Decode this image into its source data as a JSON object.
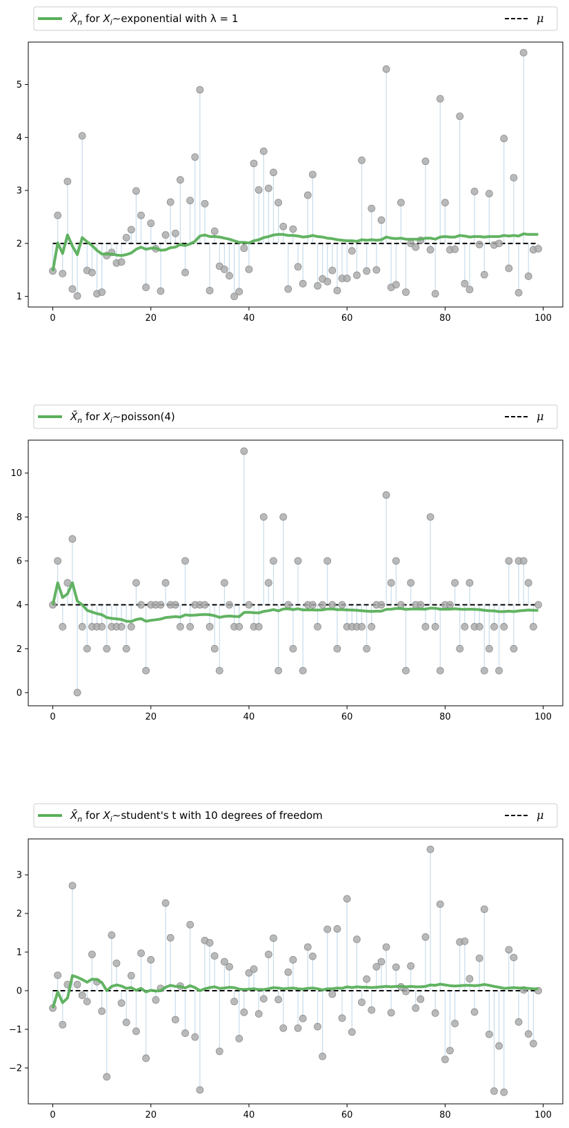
{
  "style": {
    "mean_line_color": "#5aaf5a",
    "sample_color": "#a9a9a9",
    "stem_color": "#c6dcec",
    "mu_color": "#000000",
    "background": "#ffffff"
  },
  "legend": {
    "mu_label": "μ"
  },
  "chart_data": [
    {
      "type": "scatter",
      "legend_pre": "X̄",
      "legend_pre_sub": "n",
      "legend_mid": "for",
      "legend_var": "X",
      "legend_var_sub": "i",
      "legend_text": "∼exponential with λ = 1",
      "mu": 2,
      "xlim": [
        -5,
        104
      ],
      "ylim": [
        0.8,
        5.8
      ],
      "xticks": [
        0,
        20,
        40,
        60,
        80,
        100
      ],
      "yticks": [
        1,
        2,
        3,
        4,
        5
      ],
      "grid": false,
      "legend_position": "top",
      "x": [
        0,
        1,
        2,
        3,
        4,
        5,
        6,
        7,
        8,
        9,
        10,
        11,
        12,
        13,
        14,
        15,
        16,
        17,
        18,
        19,
        20,
        21,
        22,
        23,
        24,
        25,
        26,
        27,
        28,
        29,
        30,
        31,
        32,
        33,
        34,
        35,
        36,
        37,
        38,
        39,
        40,
        41,
        42,
        43,
        44,
        45,
        46,
        47,
        48,
        49,
        50,
        51,
        52,
        53,
        54,
        55,
        56,
        57,
        58,
        59,
        60,
        61,
        62,
        63,
        64,
        65,
        66,
        67,
        68,
        69,
        70,
        71,
        72,
        73,
        74,
        75,
        76,
        77,
        78,
        79,
        80,
        81,
        82,
        83,
        84,
        85,
        86,
        87,
        88,
        89,
        90,
        91,
        92,
        93,
        94,
        95,
        96,
        97,
        98,
        99
      ],
      "samples": [
        1.48,
        2.53,
        1.43,
        3.17,
        1.14,
        1.01,
        4.03,
        1.49,
        1.45,
        1.05,
        1.08,
        1.77,
        1.83,
        1.63,
        1.65,
        2.11,
        2.26,
        2.99,
        2.53,
        1.17,
        2.38,
        1.9,
        1.1,
        2.16,
        2.78,
        2.19,
        3.2,
        1.45,
        2.81,
        3.63,
        4.9,
        2.75,
        1.11,
        2.23,
        1.57,
        1.51,
        1.39,
        1.0,
        1.09,
        1.91,
        1.51,
        3.51,
        3.01,
        3.74,
        3.04,
        3.34,
        2.77,
        2.32,
        1.14,
        2.27,
        1.56,
        1.24,
        2.91,
        3.3,
        1.2,
        1.33,
        1.28,
        1.49,
        1.11,
        1.34,
        1.34,
        1.86,
        1.4,
        3.57,
        1.48,
        2.66,
        1.5,
        2.44,
        5.29,
        1.17,
        1.22,
        2.77,
        1.08,
        2.0,
        1.93,
        2.06,
        3.55,
        1.88,
        1.05,
        4.73,
        2.77,
        1.88,
        1.89,
        4.4,
        1.24,
        1.13,
        2.98,
        1.98,
        1.41,
        2.94,
        1.97,
        2.0,
        3.98,
        1.53,
        3.24,
        1.07,
        5.6,
        1.38,
        1.88,
        1.9
      ],
      "running_mean": [
        1.48,
        2.01,
        1.81,
        2.16,
        1.95,
        1.79,
        2.11,
        2.03,
        1.96,
        1.87,
        1.8,
        1.8,
        1.8,
        1.78,
        1.77,
        1.79,
        1.82,
        1.89,
        1.93,
        1.89,
        1.91,
        1.91,
        1.87,
        1.88,
        1.92,
        1.93,
        1.98,
        1.96,
        1.99,
        2.04,
        2.14,
        2.16,
        2.13,
        2.13,
        2.12,
        2.1,
        2.08,
        2.05,
        2.02,
        2.02,
        2.01,
        2.05,
        2.07,
        2.11,
        2.13,
        2.16,
        2.17,
        2.17,
        2.15,
        2.15,
        2.14,
        2.12,
        2.13,
        2.15,
        2.13,
        2.12,
        2.1,
        2.09,
        2.07,
        2.06,
        2.05,
        2.05,
        2.04,
        2.07,
        2.06,
        2.07,
        2.06,
        2.07,
        2.12,
        2.1,
        2.09,
        2.1,
        2.08,
        2.08,
        2.08,
        2.08,
        2.1,
        2.1,
        2.08,
        2.12,
        2.13,
        2.12,
        2.12,
        2.15,
        2.14,
        2.12,
        2.13,
        2.13,
        2.12,
        2.13,
        2.13,
        2.13,
        2.15,
        2.14,
        2.15,
        2.14,
        2.18,
        2.17,
        2.17,
        2.17
      ]
    },
    {
      "type": "scatter",
      "legend_pre": "X̄",
      "legend_pre_sub": "n",
      "legend_mid": "for",
      "legend_var": "X",
      "legend_var_sub": "i",
      "legend_text": "∼poisson(4)",
      "mu": 4,
      "xlim": [
        -5,
        104
      ],
      "ylim": [
        -0.6,
        11.5
      ],
      "xticks": [
        0,
        20,
        40,
        60,
        80,
        100
      ],
      "yticks": [
        0,
        2,
        4,
        6,
        8,
        10
      ],
      "grid": false,
      "legend_position": "top",
      "x": [
        0,
        1,
        2,
        3,
        4,
        5,
        6,
        7,
        8,
        9,
        10,
        11,
        12,
        13,
        14,
        15,
        16,
        17,
        18,
        19,
        20,
        21,
        22,
        23,
        24,
        25,
        26,
        27,
        28,
        29,
        30,
        31,
        32,
        33,
        34,
        35,
        36,
        37,
        38,
        39,
        40,
        41,
        42,
        43,
        44,
        45,
        46,
        47,
        48,
        49,
        50,
        51,
        52,
        53,
        54,
        55,
        56,
        57,
        58,
        59,
        60,
        61,
        62,
        63,
        64,
        65,
        66,
        67,
        68,
        69,
        70,
        71,
        72,
        73,
        74,
        75,
        76,
        77,
        78,
        79,
        80,
        81,
        82,
        83,
        84,
        85,
        86,
        87,
        88,
        89,
        90,
        91,
        92,
        93,
        94,
        95,
        96,
        97,
        98,
        99
      ],
      "samples": [
        4,
        6,
        3,
        5,
        7,
        0,
        3,
        2,
        3,
        3,
        3,
        2,
        3,
        3,
        3,
        2,
        3,
        5,
        4,
        1,
        4,
        4,
        4,
        5,
        4,
        4,
        3,
        6,
        3,
        4,
        4,
        4,
        3,
        2,
        1,
        5,
        4,
        3,
        3,
        11,
        4,
        3,
        3,
        8,
        5,
        6,
        1,
        8,
        4,
        2,
        6,
        1,
        4,
        4,
        3,
        4,
        6,
        4,
        2,
        4,
        3,
        3,
        3,
        3,
        2,
        3,
        4,
        4,
        9,
        5,
        6,
        4,
        1,
        5,
        4,
        4,
        3,
        8,
        3,
        1,
        4,
        4,
        5,
        2,
        3,
        5,
        3,
        3,
        1,
        2,
        3,
        1,
        3,
        6,
        2,
        6,
        6,
        5,
        3,
        4
      ],
      "running_mean": [
        4.0,
        5.0,
        4.33,
        4.5,
        5.0,
        4.17,
        4.0,
        3.75,
        3.67,
        3.6,
        3.55,
        3.42,
        3.38,
        3.36,
        3.33,
        3.25,
        3.24,
        3.33,
        3.37,
        3.25,
        3.29,
        3.32,
        3.35,
        3.42,
        3.44,
        3.46,
        3.44,
        3.54,
        3.52,
        3.53,
        3.55,
        3.56,
        3.55,
        3.5,
        3.43,
        3.47,
        3.49,
        3.47,
        3.46,
        3.65,
        3.66,
        3.64,
        3.63,
        3.7,
        3.73,
        3.78,
        3.72,
        3.81,
        3.82,
        3.78,
        3.82,
        3.77,
        3.77,
        3.77,
        3.76,
        3.77,
        3.81,
        3.81,
        3.78,
        3.78,
        3.77,
        3.76,
        3.75,
        3.73,
        3.71,
        3.7,
        3.71,
        3.71,
        3.79,
        3.8,
        3.83,
        3.83,
        3.79,
        3.81,
        3.81,
        3.81,
        3.8,
        3.85,
        3.84,
        3.8,
        3.8,
        3.8,
        3.82,
        3.8,
        3.79,
        3.8,
        3.79,
        3.78,
        3.75,
        3.73,
        3.72,
        3.69,
        3.69,
        3.71,
        3.69,
        3.72,
        3.74,
        3.76,
        3.75,
        3.75
      ]
    },
    {
      "type": "scatter",
      "legend_pre": "X̄",
      "legend_pre_sub": "n",
      "legend_mid": "for",
      "legend_var": "X",
      "legend_var_sub": "i",
      "legend_text": "∼student's t with 10 degrees of freedom",
      "mu": 0,
      "xlim": [
        -5,
        104
      ],
      "ylim": [
        -2.93,
        3.93
      ],
      "xticks": [
        0,
        20,
        40,
        60,
        80,
        100
      ],
      "yticks": [
        -2,
        -1,
        0,
        1,
        2,
        3
      ],
      "grid": false,
      "legend_position": "top",
      "x": [
        0,
        1,
        2,
        3,
        4,
        5,
        6,
        7,
        8,
        9,
        10,
        11,
        12,
        13,
        14,
        15,
        16,
        17,
        18,
        19,
        20,
        21,
        22,
        23,
        24,
        25,
        26,
        27,
        28,
        29,
        30,
        31,
        32,
        33,
        34,
        35,
        36,
        37,
        38,
        39,
        40,
        41,
        42,
        43,
        44,
        45,
        46,
        47,
        48,
        49,
        50,
        51,
        52,
        53,
        54,
        55,
        56,
        57,
        58,
        59,
        60,
        61,
        62,
        63,
        64,
        65,
        66,
        67,
        68,
        69,
        70,
        71,
        72,
        73,
        74,
        75,
        76,
        77,
        78,
        79,
        80,
        81,
        82,
        83,
        84,
        85,
        86,
        87,
        88,
        89,
        90,
        91,
        92,
        93,
        94,
        95,
        96,
        97,
        98,
        99
      ],
      "samples": [
        -0.45,
        0.4,
        -0.88,
        0.16,
        2.72,
        0.16,
        -0.12,
        -0.28,
        0.94,
        0.23,
        -0.53,
        -2.23,
        1.44,
        0.71,
        -0.32,
        -0.82,
        0.39,
        -1.05,
        0.97,
        -1.75,
        0.8,
        -0.24,
        0.06,
        2.27,
        1.37,
        -0.75,
        0.12,
        -1.1,
        1.71,
        -1.2,
        -2.57,
        1.3,
        1.24,
        0.9,
        -1.57,
        0.75,
        0.62,
        -0.28,
        -1.24,
        -0.56,
        0.46,
        0.56,
        -0.6,
        -0.21,
        0.94,
        1.36,
        -0.23,
        -0.97,
        0.48,
        0.8,
        -0.97,
        -0.72,
        1.13,
        0.89,
        -0.93,
        -1.7,
        1.59,
        -0.09,
        1.6,
        -0.71,
        2.38,
        -1.07,
        1.33,
        -0.3,
        0.3,
        -0.5,
        0.62,
        0.75,
        1.13,
        -0.57,
        0.61,
        0.1,
        -0.02,
        0.64,
        -0.45,
        -0.22,
        1.39,
        3.66,
        -0.58,
        2.24,
        -1.78,
        -1.55,
        -0.85,
        1.26,
        1.28,
        0.31,
        -0.55,
        0.84,
        2.11,
        -1.13,
        -2.6,
        -1.43,
        -2.63,
        1.06,
        0.86,
        -0.81,
        0.02,
        -1.12,
        -1.37,
        0.0
      ],
      "running_mean": [
        -0.45,
        -0.03,
        -0.31,
        -0.19,
        0.39,
        0.35,
        0.29,
        0.22,
        0.3,
        0.29,
        0.21,
        0.0,
        0.11,
        0.15,
        0.12,
        0.06,
        0.08,
        0.01,
        0.06,
        -0.03,
        0.01,
        -0.01,
        0.0,
        0.09,
        0.14,
        0.11,
        0.11,
        0.07,
        0.13,
        0.08,
        0.0,
        0.05,
        0.08,
        0.1,
        0.06,
        0.07,
        0.09,
        0.08,
        0.04,
        0.03,
        0.04,
        0.05,
        0.03,
        0.03,
        0.05,
        0.08,
        0.07,
        0.05,
        0.06,
        0.07,
        0.05,
        0.04,
        0.06,
        0.07,
        0.05,
        0.02,
        0.05,
        0.05,
        0.07,
        0.06,
        0.1,
        0.08,
        0.1,
        0.09,
        0.09,
        0.08,
        0.09,
        0.1,
        0.11,
        0.1,
        0.11,
        0.11,
        0.1,
        0.11,
        0.1,
        0.1,
        0.11,
        0.15,
        0.14,
        0.17,
        0.15,
        0.13,
        0.12,
        0.13,
        0.14,
        0.14,
        0.13,
        0.14,
        0.16,
        0.14,
        0.11,
        0.09,
        0.06,
        0.07,
        0.08,
        0.07,
        0.07,
        0.06,
        0.05,
        0.05
      ]
    }
  ]
}
